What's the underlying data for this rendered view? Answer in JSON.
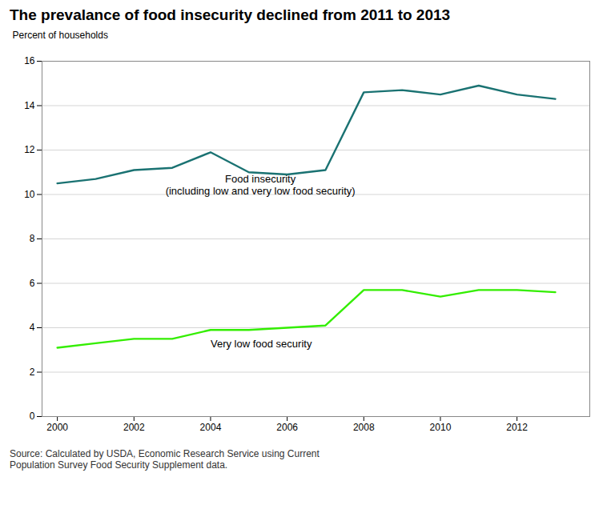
{
  "chart_data": {
    "type": "line",
    "title": "The prevalance of food insecurity declined from 2011 to 2013",
    "ylabel": "Percent of households",
    "source": "Source: Calculated by USDA, Economic Research Service using Current\nPopulation Survey Food Security Supplement data.",
    "x": [
      2000,
      2001,
      2002,
      2003,
      2004,
      2005,
      2006,
      2007,
      2008,
      2009,
      2010,
      2011,
      2012,
      2013
    ],
    "series": [
      {
        "color": "#1a7272",
        "values": [
          10.5,
          10.7,
          11.1,
          11.2,
          11.9,
          11.0,
          10.9,
          11.1,
          14.6,
          14.7,
          14.5,
          14.9,
          14.5,
          14.3
        ]
      },
      {
        "color": "#33ee00",
        "values": [
          3.1,
          3.3,
          3.5,
          3.5,
          3.9,
          3.9,
          4.0,
          4.1,
          5.7,
          5.7,
          5.4,
          5.7,
          5.7,
          5.6
        ]
      }
    ],
    "annotations": [
      {
        "text": "Food insecurity",
        "x": 2005.3,
        "y": 10.55
      },
      {
        "text": "(including low and very low food security)",
        "x": 2005.3,
        "y": 10.35
      },
      {
        "text": "Very low food security",
        "x": 2004.0,
        "y": 3.45
      }
    ],
    "xlim": [
      1999.6,
      2013.9
    ],
    "xticks": [
      2000,
      2002,
      2004,
      2006,
      2008,
      2010,
      2012
    ],
    "ylim": [
      0,
      16
    ],
    "yticks": [
      0,
      2,
      4,
      6,
      8,
      10,
      12,
      14,
      16
    ],
    "grid": true
  }
}
